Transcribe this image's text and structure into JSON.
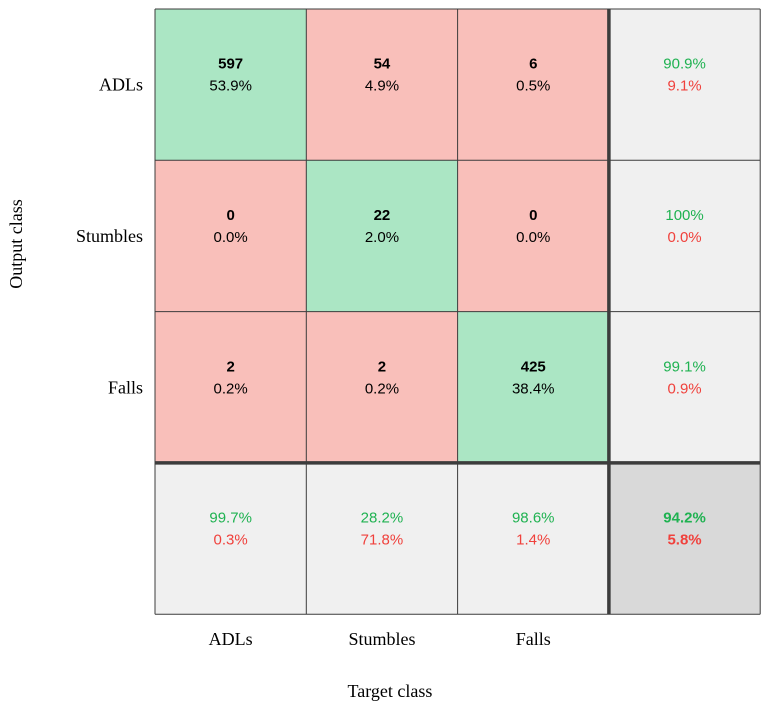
{
  "chart_data": {
    "type": "heatmap",
    "subtype": "confusion-matrix",
    "xlabel": "Target class",
    "ylabel": "Output class",
    "classes": [
      "ADLs",
      "Stumbles",
      "Falls"
    ],
    "matrix": [
      [
        {
          "count": "597",
          "pct": "53.9%"
        },
        {
          "count": "54",
          "pct": "4.9%"
        },
        {
          "count": "6",
          "pct": "0.5%"
        }
      ],
      [
        {
          "count": "0",
          "pct": "0.0%"
        },
        {
          "count": "22",
          "pct": "2.0%"
        },
        {
          "count": "0",
          "pct": "0.0%"
        }
      ],
      [
        {
          "count": "2",
          "pct": "0.2%"
        },
        {
          "count": "2",
          "pct": "0.2%"
        },
        {
          "count": "425",
          "pct": "38.4%"
        }
      ]
    ],
    "row_summary": [
      {
        "correct": "90.9%",
        "error": "9.1%"
      },
      {
        "correct": "100%",
        "error": "0.0%"
      },
      {
        "correct": "99.1%",
        "error": "0.9%"
      }
    ],
    "col_summary": [
      {
        "correct": "99.7%",
        "error": "0.3%"
      },
      {
        "correct": "28.2%",
        "error": "71.8%"
      },
      {
        "correct": "98.6%",
        "error": "1.4%"
      }
    ],
    "overall": {
      "correct": "94.2%",
      "error": "5.8%"
    }
  },
  "colors": {
    "diagonal": "#abe6c4",
    "off_diagonal": "#f9bfba",
    "summary": "#f0f0f0",
    "overall": "#d9d9d9",
    "good_text": "#1fb251",
    "bad_text": "#f0413c",
    "grid_line": "#3c3c3c",
    "thick_line": "#3c3c3c"
  }
}
